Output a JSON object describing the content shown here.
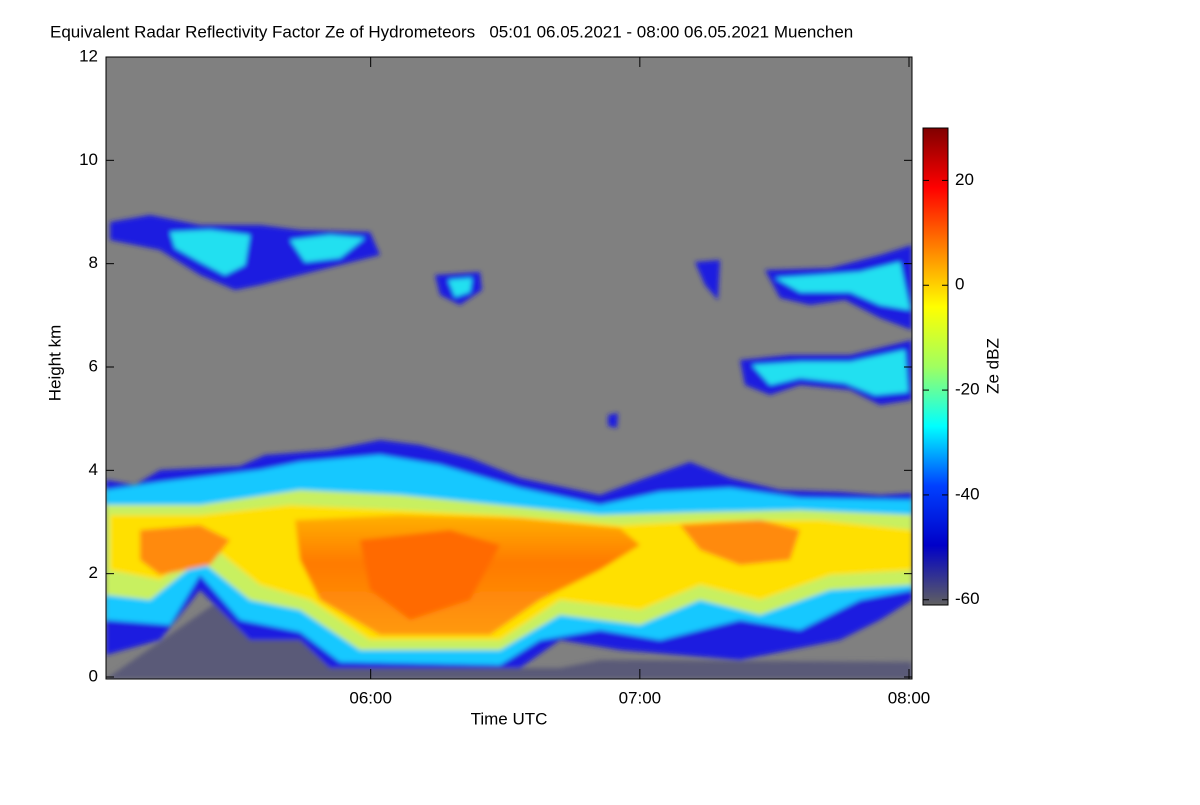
{
  "chart_data": {
    "type": "heatmap",
    "title": "Equivalent Radar Reflectivity Factor Ze of Hydrometeors   05:01 06.05.2021 - 08:00 06.05.2021 Muenchen",
    "xlabel": "Time UTC",
    "ylabel": "Height km",
    "xlim": [
      "05:01",
      "08:00"
    ],
    "xticks": [
      "06:00",
      "07:00",
      "08:00"
    ],
    "ylim": [
      0,
      12
    ],
    "yticks": [
      0,
      2,
      4,
      6,
      8,
      10,
      12
    ],
    "background": "#808080",
    "colorbar": {
      "label": "Ze dBZ",
      "lim": [
        -61,
        30
      ],
      "ticks": [
        20,
        0,
        -20,
        -40,
        -60
      ],
      "colors": [
        "#606060",
        "#0000c8",
        "#0040ff",
        "#00ffff",
        "#a0ff60",
        "#ffff00",
        "#ff8000",
        "#ff0000",
        "#800000"
      ]
    }
  }
}
